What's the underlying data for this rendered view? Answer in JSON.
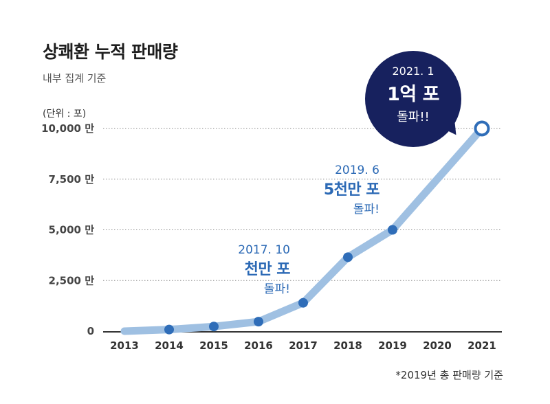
{
  "header": {
    "title": "상쾌환 누적 판매량",
    "subtitle": "내부 집계 기준",
    "unit": "(단위 : 포)"
  },
  "annotations": [
    {
      "date": "2017. 10",
      "main": "천만 포",
      "sub": "돌파!"
    },
    {
      "date": "2019. 6",
      "main": "5천만 포",
      "sub": "돌파!"
    }
  ],
  "bubble": {
    "date": "2021. 1",
    "main": "1억 포",
    "sub": "돌파!!"
  },
  "footnote": "*2019년 총 판매량 기준",
  "colors": {
    "line": "#9fc0e2",
    "point": "#2f6db8",
    "bubble": "#17215e",
    "annotation": "#2b69b5"
  },
  "chart_data": {
    "type": "line",
    "x": [
      "2013",
      "2014",
      "2015",
      "2016",
      "2017",
      "2018",
      "2019",
      "2020",
      "2021"
    ],
    "series": [
      {
        "values": [
          0,
          80,
          230,
          470,
          1400,
          3650,
          5000,
          null,
          10000
        ]
      }
    ],
    "y_ticks": [
      0,
      2500,
      5000,
      7500,
      10000
    ],
    "y_tick_labels": [
      "0",
      "2,500 만",
      "5,000 만",
      "7,500 만",
      "10,000 만"
    ],
    "ylim": [
      0,
      10000
    ],
    "grid": true,
    "legend": "none"
  }
}
